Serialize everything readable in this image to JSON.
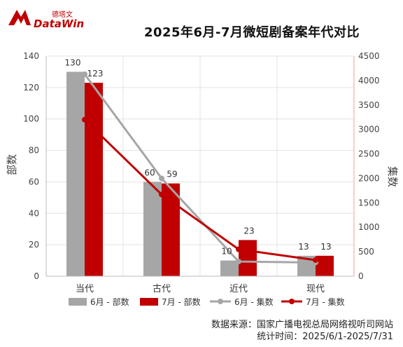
{
  "brand": {
    "cn": "德塔文",
    "en": "DataWin",
    "color": "#c00000"
  },
  "chart_data": {
    "type": "bar",
    "title": "2025年6月-7月微短剧备案年代对比",
    "categories": [
      "当代",
      "古代",
      "近代",
      "现代"
    ],
    "ylabel": "部数",
    "ylabel_right": "集数",
    "ylim": [
      0,
      140
    ],
    "ylim_right": [
      0,
      4500
    ],
    "yticks": [
      0,
      20,
      40,
      60,
      80,
      100,
      120,
      140
    ],
    "yticks_right": [
      0,
      500,
      1000,
      1500,
      2000,
      2500,
      3000,
      3500,
      4000,
      4500
    ],
    "grid": true,
    "legend_position": "bottom",
    "series": [
      {
        "name": "6月 - 部数",
        "type": "bar",
        "axis": "left",
        "color": "#a6a6a6",
        "values": [
          130,
          60,
          10,
          13
        ]
      },
      {
        "name": "7月 - 部数",
        "type": "bar",
        "axis": "left",
        "color": "#c00000",
        "values": [
          123,
          59,
          23,
          13
        ]
      },
      {
        "name": "6月 - 集数",
        "type": "line",
        "axis": "right",
        "color": "#a6a6a6",
        "values": [
          4130,
          2000,
          300,
          280
        ]
      },
      {
        "name": "7月 - 集数",
        "type": "line",
        "axis": "right",
        "color": "#c00000",
        "values": [
          3200,
          1670,
          550,
          330
        ]
      }
    ]
  },
  "footer": {
    "source": "数据来源：国家广播电视总局网络视听司网站",
    "period": "统计时间：2025/6/1-2025/7/31"
  }
}
